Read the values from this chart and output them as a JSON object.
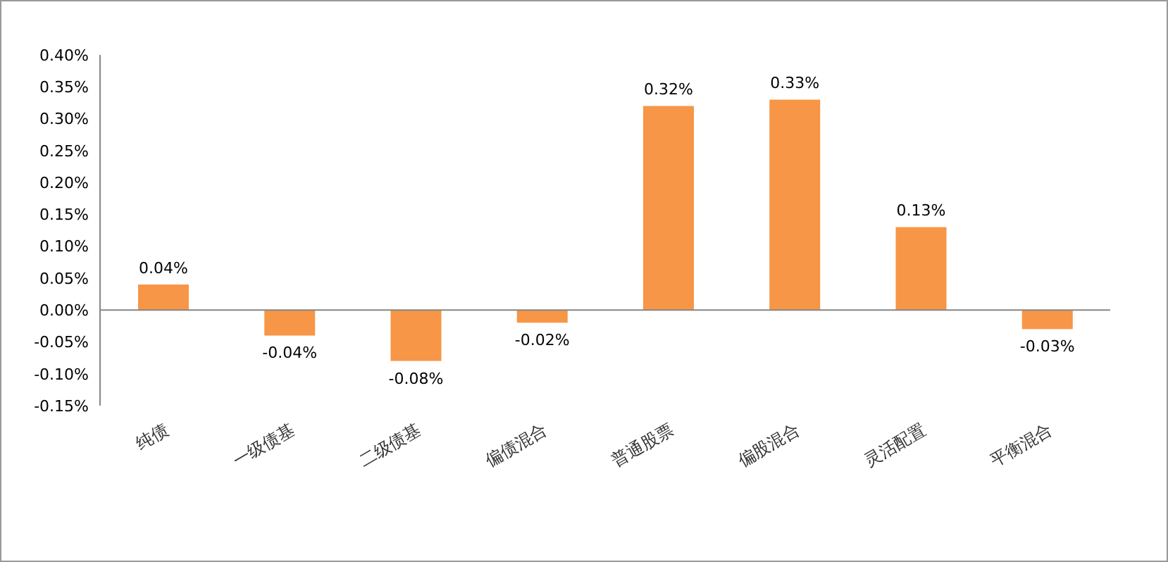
{
  "chart_data": {
    "type": "bar",
    "categories": [
      "纯债",
      "一级债基",
      "二级债基",
      "偏债混合",
      "普通股票",
      "偏股混合",
      "灵活配置",
      "平衡混合"
    ],
    "values": [
      0.04,
      -0.04,
      -0.08,
      -0.02,
      0.32,
      0.33,
      0.13,
      -0.03
    ],
    "value_labels": [
      "0.04%",
      "-0.04%",
      "-0.08%",
      "-0.02%",
      "0.32%",
      "0.33%",
      "0.13%",
      "-0.03%"
    ],
    "color": "#f79646",
    "ylim": [
      -0.15,
      0.4
    ],
    "yticks": [
      {
        "value": -0.15,
        "label": "-0.15%"
      },
      {
        "value": -0.1,
        "label": "-0.10%"
      },
      {
        "value": -0.05,
        "label": "-0.05%"
      },
      {
        "value": 0,
        "label": "0.00%"
      },
      {
        "value": 0.05,
        "label": "0.05%"
      },
      {
        "value": 0.1,
        "label": "0.10%"
      },
      {
        "value": 0.15,
        "label": "0.15%"
      },
      {
        "value": 0.2,
        "label": "0.20%"
      },
      {
        "value": 0.25,
        "label": "0.25%"
      },
      {
        "value": 0.3,
        "label": "0.30%"
      },
      {
        "value": 0.35,
        "label": "0.35%"
      },
      {
        "value": 0.4,
        "label": "0.40%"
      }
    ],
    "ref_lines": [
      {
        "axis": "y",
        "value": 0,
        "color": "#868686"
      }
    ],
    "grid": false,
    "legend": false
  }
}
